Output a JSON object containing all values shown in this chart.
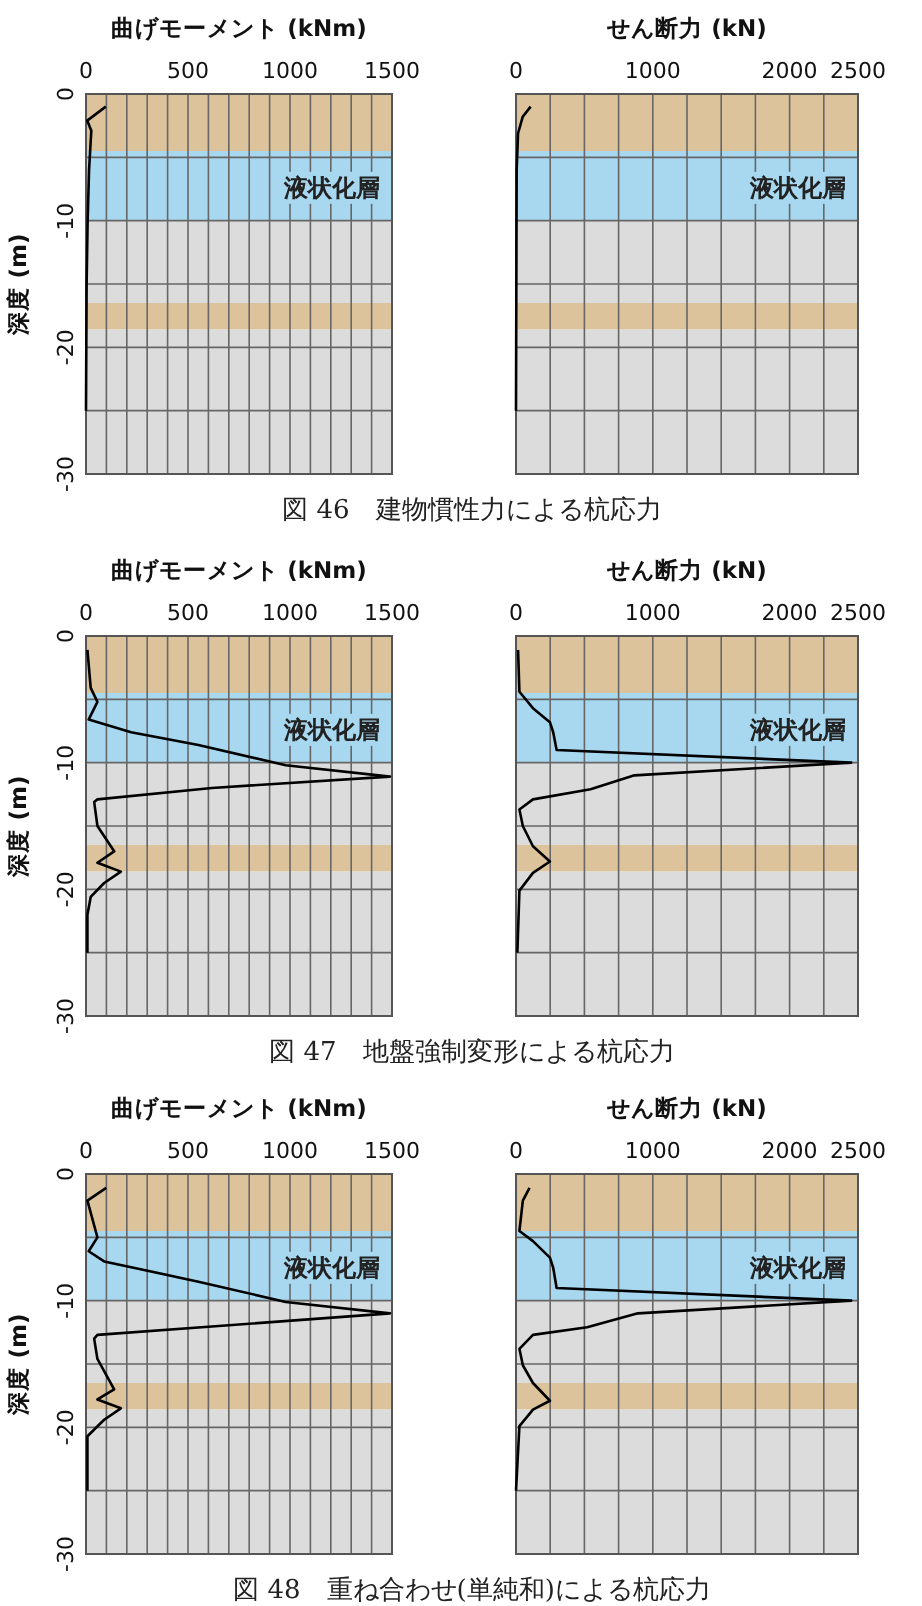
{
  "chart_data": [
    {
      "type": "line",
      "xlabel": "曲げモーメント (kNm)",
      "ylabel": "深度 (m)",
      "xlim": [
        0,
        1500
      ],
      "ylim": [
        -30,
        0
      ],
      "xticks": [
        0,
        {
          "value": 100,
          "label": null
        },
        {
          "value": 200,
          "label": null
        },
        {
          "value": 300,
          "label": null
        },
        {
          "value": 400,
          "label": null
        },
        500,
        {
          "value": 600,
          "label": null
        },
        {
          "value": 700,
          "label": null
        },
        {
          "value": 800,
          "label": null
        },
        {
          "value": 900,
          "label": null
        },
        1000,
        {
          "value": 1100,
          "label": null
        },
        {
          "value": 1200,
          "label": null
        },
        {
          "value": 1300,
          "label": null
        },
        {
          "value": 1400,
          "label": null
        },
        1500
      ],
      "yticks": [
        0,
        {
          "value": -5,
          "label": null
        },
        -10,
        {
          "value": -15,
          "label": null
        },
        -20,
        {
          "value": -25,
          "label": null
        },
        -30
      ],
      "grid": true,
      "bands": [
        {
          "axis": "y",
          "from": 0,
          "to": -4.5,
          "color": "#dcc39b"
        },
        {
          "axis": "y",
          "from": -4.5,
          "to": -10,
          "color": "#a8d8f0",
          "label": "液状化層"
        },
        {
          "axis": "y",
          "from": -10,
          "to": -16.5,
          "color": "#dcdcdc"
        },
        {
          "axis": "y",
          "from": -16.5,
          "to": -18.6,
          "color": "#dcc39b"
        },
        {
          "axis": "y",
          "from": -18.6,
          "to": -30,
          "color": "#dcdcdc"
        }
      ],
      "series": [
        {
          "color": "#000000",
          "x": [
            97,
            6,
            26,
            15,
            8,
            3,
            0
          ],
          "values": [
            -1,
            -2.1,
            -2.9,
            -6,
            -10,
            -15,
            -25
          ]
        }
      ],
      "annotations": [
        "図 46　建物慣性力による杭応力"
      ]
    },
    {
      "type": "line",
      "xlabel": "せん断力 (kN)",
      "xlim": [
        0,
        2500
      ],
      "ylim": [
        -30,
        0
      ],
      "tick_labels": "x",
      "xticks": [
        0,
        {
          "value": 250,
          "label": null
        },
        {
          "value": 500,
          "label": null
        },
        {
          "value": 750,
          "label": null
        },
        1000,
        {
          "value": 1250,
          "label": null
        },
        {
          "value": 1500,
          "label": null
        },
        {
          "value": 1750,
          "label": null
        },
        2000,
        {
          "value": 2250,
          "label": null
        },
        2500
      ],
      "yticks": [
        0,
        {
          "value": -5,
          "label": null
        },
        -10,
        {
          "value": -15,
          "label": null
        },
        -20,
        {
          "value": -25,
          "label": null
        },
        -30
      ],
      "grid": true,
      "bands": [
        {
          "axis": "y",
          "from": 0,
          "to": -4.5,
          "color": "#dcc39b"
        },
        {
          "axis": "y",
          "from": -4.5,
          "to": -10,
          "color": "#a8d8f0",
          "label": "液状化層"
        },
        {
          "axis": "y",
          "from": -10,
          "to": -16.5,
          "color": "#dcdcdc"
        },
        {
          "axis": "y",
          "from": -16.5,
          "to": -18.6,
          "color": "#dcc39b"
        },
        {
          "axis": "y",
          "from": -18.6,
          "to": -30,
          "color": "#dcdcdc"
        }
      ],
      "series": [
        {
          "color": "#000000",
          "x": [
            107,
            49,
            15,
            5,
            0
          ],
          "values": [
            -1,
            -1.8,
            -3.1,
            -6,
            -25
          ]
        }
      ]
    },
    {
      "type": "line",
      "xlabel": "曲げモーメント (kNm)",
      "ylabel": "深度 (m)",
      "xlim": [
        0,
        1500
      ],
      "ylim": [
        -30,
        0
      ],
      "xticks": [
        0,
        {
          "value": 100,
          "label": null
        },
        {
          "value": 200,
          "label": null
        },
        {
          "value": 300,
          "label": null
        },
        {
          "value": 400,
          "label": null
        },
        500,
        {
          "value": 600,
          "label": null
        },
        {
          "value": 700,
          "label": null
        },
        {
          "value": 800,
          "label": null
        },
        {
          "value": 900,
          "label": null
        },
        1000,
        {
          "value": 1100,
          "label": null
        },
        {
          "value": 1200,
          "label": null
        },
        {
          "value": 1300,
          "label": null
        },
        {
          "value": 1400,
          "label": null
        },
        1500
      ],
      "yticks": [
        0,
        {
          "value": -5,
          "label": null
        },
        -10,
        {
          "value": -15,
          "label": null
        },
        -20,
        {
          "value": -25,
          "label": null
        },
        -30
      ],
      "grid": true,
      "bands": [
        {
          "axis": "y",
          "from": 0,
          "to": -4.5,
          "color": "#dcc39b"
        },
        {
          "axis": "y",
          "from": -4.5,
          "to": -10,
          "color": "#a8d8f0",
          "label": "液状化層"
        },
        {
          "axis": "y",
          "from": -10,
          "to": -16.5,
          "color": "#dcdcdc"
        },
        {
          "axis": "y",
          "from": -16.5,
          "to": -18.6,
          "color": "#dcc39b"
        },
        {
          "axis": "y",
          "from": -18.6,
          "to": -30,
          "color": "#dcdcdc"
        }
      ],
      "series": [
        {
          "color": "#000000",
          "x": [
            7,
            23,
            56,
            13,
            221,
            551,
            979,
            1490,
            617,
            56,
            40,
            56,
            138,
            56,
            171,
            89,
            23,
            7,
            7
          ],
          "values": [
            -1.1,
            -4.1,
            -5.2,
            -6.6,
            -7.6,
            -8.6,
            -10.2,
            -11.1,
            -12,
            -12.9,
            -13.1,
            -15,
            -17,
            -17.9,
            -18.6,
            -19.5,
            -20.6,
            -22,
            -25
          ]
        }
      ],
      "annotations": [
        "図 47　地盤強制変形による杭応力"
      ]
    },
    {
      "type": "line",
      "xlabel": "せん断力 (kN)",
      "xlim": [
        0,
        2500
      ],
      "ylim": [
        -30,
        0
      ],
      "tick_labels": "x",
      "xticks": [
        0,
        {
          "value": 250,
          "label": null
        },
        {
          "value": 500,
          "label": null
        },
        {
          "value": 750,
          "label": null
        },
        1000,
        {
          "value": 1250,
          "label": null
        },
        {
          "value": 1500,
          "label": null
        },
        {
          "value": 1750,
          "label": null
        },
        2000,
        {
          "value": 2250,
          "label": null
        },
        2500
      ],
      "yticks": [
        0,
        {
          "value": -5,
          "label": null
        },
        -10,
        {
          "value": -15,
          "label": null
        },
        -20,
        {
          "value": -25,
          "label": null
        },
        -30
      ],
      "grid": true,
      "bands": [
        {
          "axis": "y",
          "from": 0,
          "to": -4.5,
          "color": "#dcc39b"
        },
        {
          "axis": "y",
          "from": -4.5,
          "to": -10,
          "color": "#a8d8f0",
          "label": "液状化層"
        },
        {
          "axis": "y",
          "from": -10,
          "to": -16.5,
          "color": "#dcdcdc"
        },
        {
          "axis": "y",
          "from": -16.5,
          "to": -18.6,
          "color": "#dcc39b"
        },
        {
          "axis": "y",
          "from": -18.6,
          "to": -30,
          "color": "#dcdcdc"
        }
      ],
      "series": [
        {
          "color": "#000000",
          "x": [
            15,
            25,
            124,
            248,
            272,
            297,
            2450,
            866,
            545,
            124,
            25,
            50,
            124,
            248,
            124,
            25,
            10
          ],
          "values": [
            -1.1,
            -4.4,
            -5.7,
            -6.8,
            -7.6,
            -9,
            -10,
            -11,
            -12.1,
            -12.9,
            -13.7,
            -15,
            -16.6,
            -17.8,
            -18.7,
            -20.1,
            -25
          ]
        }
      ]
    },
    {
      "type": "line",
      "xlabel": "曲げモーメント (kNm)",
      "ylabel": "深度 (m)",
      "xlim": [
        0,
        1500
      ],
      "ylim": [
        -30,
        0
      ],
      "xticks": [
        0,
        {
          "value": 100,
          "label": null
        },
        {
          "value": 200,
          "label": null
        },
        {
          "value": 300,
          "label": null
        },
        {
          "value": 400,
          "label": null
        },
        500,
        {
          "value": 600,
          "label": null
        },
        {
          "value": 700,
          "label": null
        },
        {
          "value": 800,
          "label": null
        },
        {
          "value": 900,
          "label": null
        },
        1000,
        {
          "value": 1100,
          "label": null
        },
        {
          "value": 1200,
          "label": null
        },
        {
          "value": 1300,
          "label": null
        },
        {
          "value": 1400,
          "label": null
        },
        1500
      ],
      "yticks": [
        0,
        {
          "value": -5,
          "label": null
        },
        -10,
        {
          "value": -15,
          "label": null
        },
        -20,
        {
          "value": -25,
          "label": null
        },
        -30
      ],
      "grid": true,
      "bands": [
        {
          "axis": "y",
          "from": 0,
          "to": -4.5,
          "color": "#dcc39b"
        },
        {
          "axis": "y",
          "from": -4.5,
          "to": -10,
          "color": "#a8d8f0",
          "label": "液状化層"
        },
        {
          "axis": "y",
          "from": -10,
          "to": -16.5,
          "color": "#dcdcdc"
        },
        {
          "axis": "y",
          "from": -16.5,
          "to": -18.6,
          "color": "#dcc39b"
        },
        {
          "axis": "y",
          "from": -18.6,
          "to": -30,
          "color": "#dcdcdc"
        }
      ],
      "series": [
        {
          "color": "#000000",
          "x": [
            99,
            7,
            56,
            13,
            89,
            551,
            979,
            1490,
            650,
            56,
            40,
            56,
            138,
            56,
            171,
            89,
            7,
            7
          ],
          "values": [
            -1.1,
            -2.1,
            -5,
            -6.1,
            -6.9,
            -8.5,
            -10.1,
            -11,
            -12,
            -12.7,
            -13,
            -14.6,
            -17,
            -17.8,
            -18.5,
            -19.4,
            -20.7,
            -25
          ]
        }
      ],
      "annotations": [
        "図 48　重ね合わせ(単純和)による杭応力"
      ]
    },
    {
      "type": "line",
      "xlabel": "せん断力 (kN)",
      "xlim": [
        0,
        2500
      ],
      "ylim": [
        -30,
        0
      ],
      "tick_labels": "x",
      "xticks": [
        0,
        {
          "value": 250,
          "label": null
        },
        {
          "value": 500,
          "label": null
        },
        {
          "value": 750,
          "label": null
        },
        1000,
        {
          "value": 1250,
          "label": null
        },
        {
          "value": 1500,
          "label": null
        },
        {
          "value": 1750,
          "label": null
        },
        2000,
        {
          "value": 2250,
          "label": null
        },
        2500
      ],
      "yticks": [
        0,
        {
          "value": -5,
          "label": null
        },
        -10,
        {
          "value": -15,
          "label": null
        },
        -20,
        {
          "value": -25,
          "label": null
        },
        -30
      ],
      "grid": true,
      "bands": [
        {
          "axis": "y",
          "from": 0,
          "to": -4.5,
          "color": "#dcc39b"
        },
        {
          "axis": "y",
          "from": -4.5,
          "to": -10,
          "color": "#a8d8f0",
          "label": "液状化層"
        },
        {
          "axis": "y",
          "from": -10,
          "to": -16.5,
          "color": "#dcdcdc"
        },
        {
          "axis": "y",
          "from": -16.5,
          "to": -18.6,
          "color": "#dcc39b"
        },
        {
          "axis": "y",
          "from": -18.6,
          "to": -30,
          "color": "#dcdcdc"
        }
      ],
      "series": [
        {
          "color": "#000000",
          "x": [
            99,
            50,
            25,
            124,
            248,
            272,
            297,
            2450,
            891,
            520,
            124,
            25,
            50,
            124,
            248,
            124,
            25,
            0
          ],
          "values": [
            -1.1,
            -2.1,
            -4.5,
            -5.3,
            -6.6,
            -7.4,
            -9,
            -10,
            -11,
            -12.1,
            -12.7,
            -13.8,
            -15.1,
            -16.5,
            -17.9,
            -18.6,
            -19.9,
            -25
          ]
        }
      ]
    }
  ]
}
